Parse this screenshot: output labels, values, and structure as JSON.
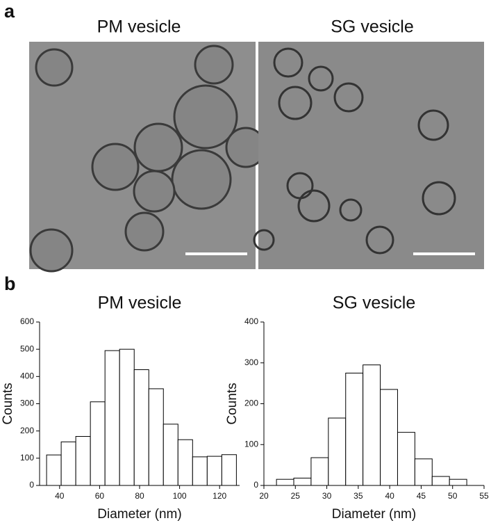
{
  "panel_a": {
    "label": "a",
    "images": [
      {
        "title": "PM vesicle"
      },
      {
        "title": "SG vesicle"
      }
    ]
  },
  "panel_b": {
    "label": "b"
  },
  "chart_data": [
    {
      "type": "histogram",
      "title": "PM vesicle",
      "xlabel": "Diameter (nm)",
      "ylabel": "Counts",
      "bins": [
        33.5,
        40.8,
        48.1,
        55.4,
        62.7,
        70,
        77.3,
        84.6,
        91.9,
        99.2,
        106.5,
        113.8,
        121.1,
        128.4
      ],
      "values": [
        112,
        160,
        180,
        307,
        495,
        500,
        425,
        355,
        225,
        168,
        105,
        107,
        113
      ],
      "color": "#ffffff",
      "xlim": [
        30,
        130
      ],
      "xticks": [
        40,
        60,
        80,
        100,
        120
      ],
      "ylim": [
        0,
        600
      ],
      "yticks": [
        0,
        100,
        200,
        300,
        400,
        500,
        600
      ]
    },
    {
      "type": "histogram",
      "title": "SG vesicle",
      "xlabel": "Diameter (nm)",
      "ylabel": "Counts",
      "bins": [
        22,
        24.75,
        27.5,
        30.25,
        33,
        35.75,
        38.5,
        41.25,
        44,
        46.75,
        49.5,
        52.25
      ],
      "values": [
        15,
        18,
        68,
        165,
        275,
        295,
        235,
        130,
        65,
        22,
        15
      ],
      "color": "#ffffff",
      "xlim": [
        20,
        55
      ],
      "xticks": [
        20,
        25,
        30,
        35,
        40,
        45,
        50,
        55
      ],
      "ylim": [
        0,
        400
      ],
      "yticks": [
        0,
        100,
        200,
        300,
        400
      ]
    }
  ]
}
